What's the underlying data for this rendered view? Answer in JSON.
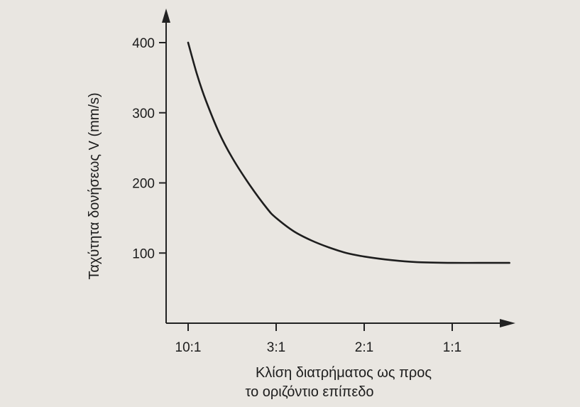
{
  "chart_data": {
    "type": "line",
    "title": "",
    "xlabel": [
      "Κλίση διατρήματος ως προς",
      "το οριζόντιο επίπεδο"
    ],
    "ylabel": "Ταχύτητα δονήσεως V  (mm/s)",
    "categories": [
      "10:1",
      "3:1",
      "2:1",
      "1:1"
    ],
    "yticks": [
      100,
      200,
      300,
      400
    ],
    "ylim": [
      0,
      450
    ],
    "xlim": [
      -0.15,
      3.95
    ],
    "grid": false,
    "series": [
      {
        "x": [
          0,
          0.1,
          0.2,
          0.35,
          0.5,
          0.7,
          0.9,
          1.0,
          1.2,
          1.4,
          1.6,
          1.8,
          2.0,
          2.3,
          2.6,
          3.0,
          3.3,
          3.65
        ],
        "y": [
          400,
          355,
          318,
          272,
          236,
          197,
          163,
          150,
          131,
          118,
          108,
          100,
          95,
          90,
          87,
          86,
          86,
          86
        ]
      }
    ]
  }
}
